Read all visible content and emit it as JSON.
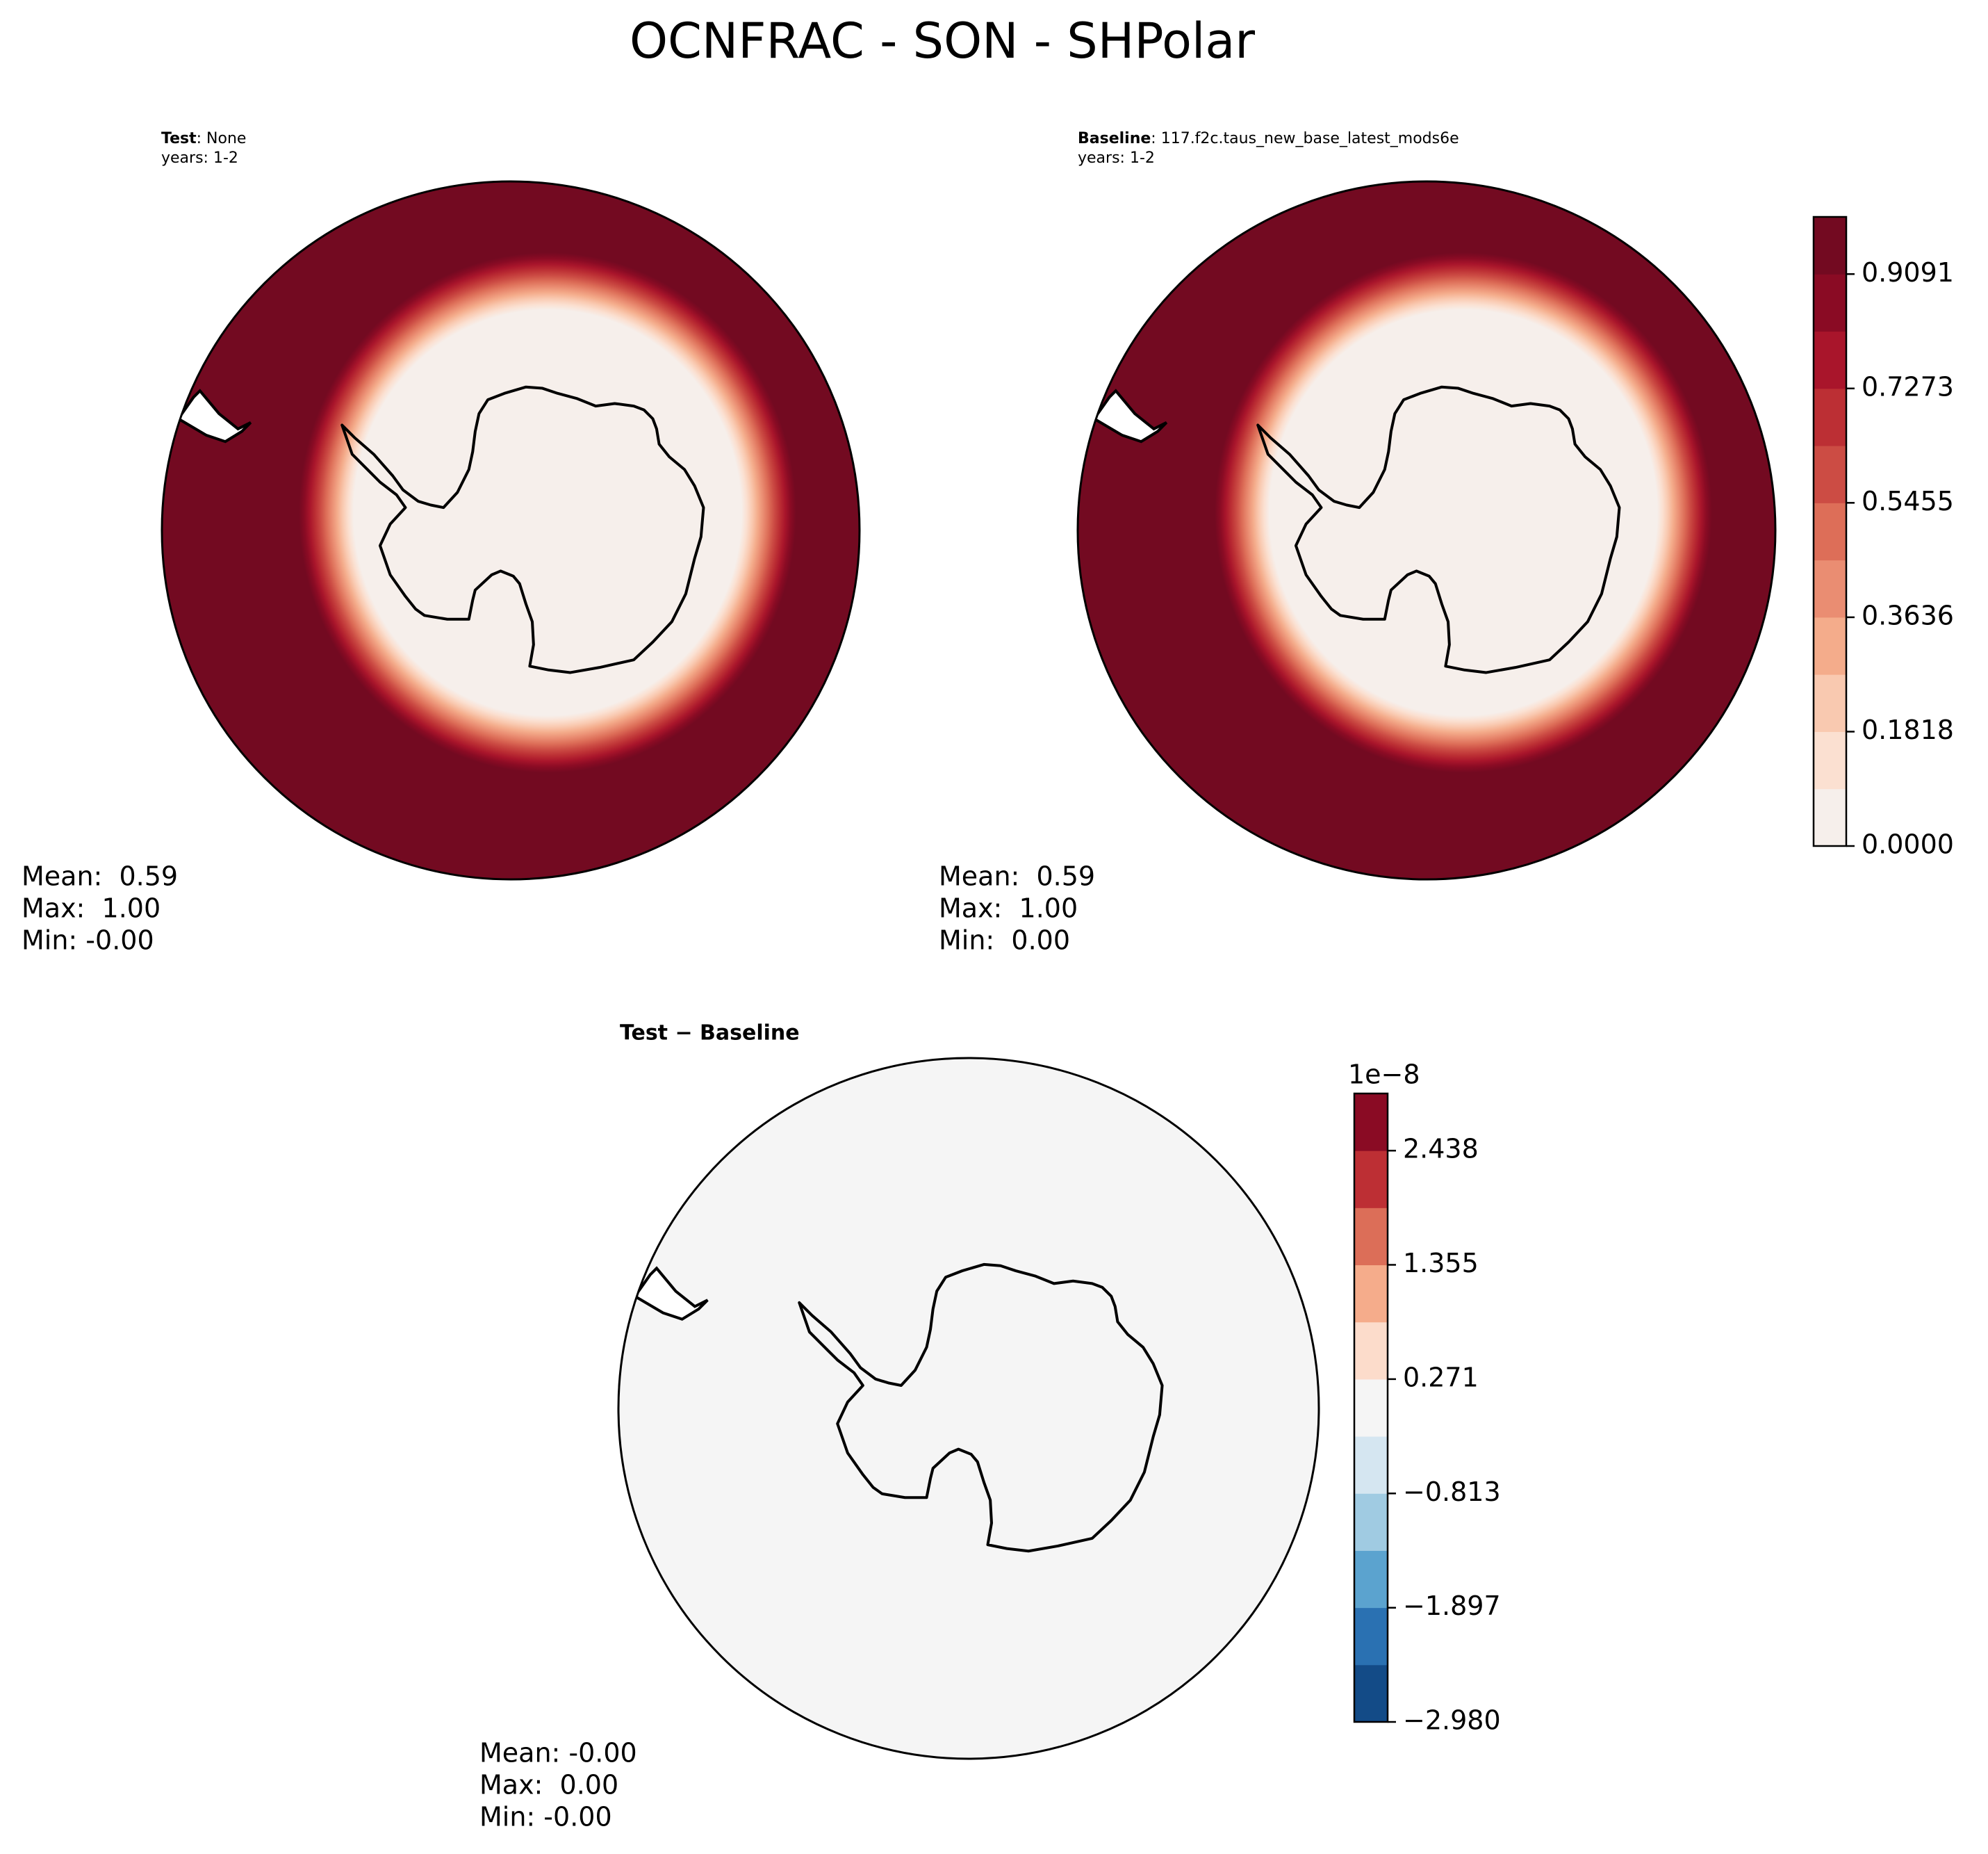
{
  "title": "OCNFRAC - SON - SHPolar",
  "panels": [
    {
      "case_label": "Test",
      "case_name": ": None",
      "years": "years: 1-2",
      "stats": [
        "Mean:  0.59",
        "Max:  1.00",
        "Min: -0.00"
      ]
    },
    {
      "case_label": "Baseline",
      "case_name": ": 117.f2c.taus_new_base_latest_mods6e",
      "years": "years: 1-2",
      "stats": [
        "Mean:  0.59",
        "Max:  1.00",
        "Min:  0.00"
      ]
    },
    {
      "title": "Test − Baseline",
      "stats": [
        "Mean: -0.00",
        "Max:  0.00",
        "Min: -0.00"
      ]
    }
  ],
  "colorbars": [
    {
      "lim": [
        0,
        1
      ],
      "ticks": [
        {
          "value": 0,
          "label": "0.0000"
        },
        0.1818,
        0.3636,
        0.5455,
        0.7273,
        0.9091
      ],
      "colors": [
        "#f6efeb",
        "#fbe0d1",
        "#f9c9b0",
        "#f4ac8b",
        "#ea8d72",
        "#dd6e58",
        "#cc4c44",
        "#bc2f34",
        "#a9152b",
        "#8a0b24",
        "#730a21"
      ]
    },
    {
      "offset_label": "1e−8",
      "lim": [
        -2.98,
        2.98
      ],
      "ticks": [
        {
          "value": -2.98,
          "label": "−2.980"
        },
        {
          "value": -1.897,
          "label": "−1.897"
        },
        {
          "value": -0.813,
          "label": "−0.813"
        },
        0.271,
        1.355,
        2.438
      ],
      "colors": [
        "#134b87",
        "#2a71b2",
        "#5ba3cf",
        "#a0cbe2",
        "#d5e6f1",
        "#f5f5f5",
        "#fcdccb",
        "#f5ac8b",
        "#dc6e58",
        "#bd2f34",
        "#8a0b24"
      ]
    }
  ]
}
